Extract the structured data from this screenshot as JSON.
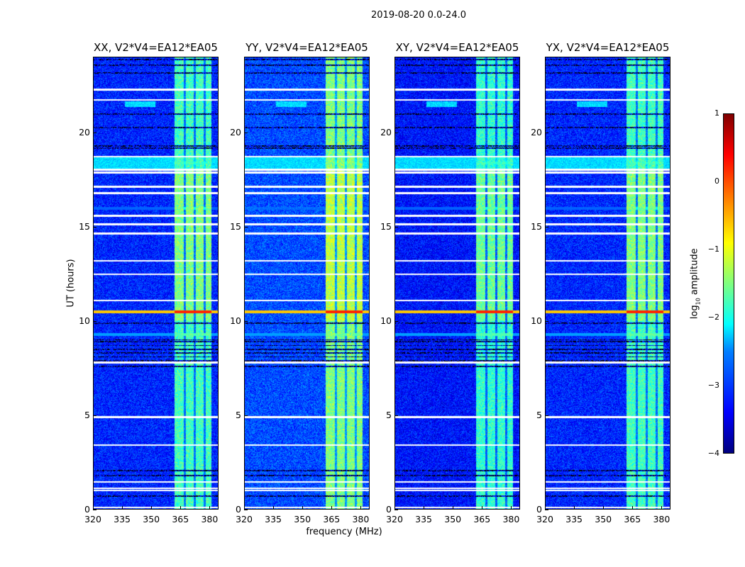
{
  "chart_data": {
    "type": "heatmap",
    "suptitle": "2019-08-20 0.0-24.0",
    "xlabel": "frequency (MHz)",
    "ylabel": "UT (hours)",
    "xlim": [
      320,
      384.6
    ],
    "ylim": [
      0,
      24
    ],
    "xticks": [
      "320",
      "335",
      "350",
      "365",
      "380"
    ],
    "xtick_values": [
      320,
      335,
      350,
      365,
      380
    ],
    "yticks": [
      "0",
      "5",
      "10",
      "15",
      "20"
    ],
    "ytick_values": [
      0,
      5,
      10,
      15,
      20
    ],
    "panels": [
      {
        "title": "XX, V2*V4=EA12*EA05",
        "band_level": -1.5,
        "background_level": -3.2
      },
      {
        "title": "YY, V2*V4=EA12*EA05",
        "band_level": -1.2,
        "background_level": -3.0
      },
      {
        "title": "XY, V2*V4=EA12*EA05",
        "band_level": -1.6,
        "background_level": -3.3
      },
      {
        "title": "YX, V2*V4=EA12*EA05",
        "band_level": -1.5,
        "background_level": -3.2
      }
    ],
    "bright_band_mhz": [
      362,
      381
    ],
    "band_gaps_mhz": [
      367.3,
      372.4,
      377.5
    ],
    "flagged_rows_hours": [
      0.1,
      1.0,
      1.1,
      1.45,
      3.4,
      4.9,
      7.8,
      11.1,
      12.5,
      13.2,
      14.65,
      15.15,
      15.6,
      16.8,
      17.15,
      17.9,
      18.05,
      18.75,
      21.75,
      22.3
    ],
    "masked_rows_hours": [
      0.7,
      1.8,
      2.05,
      7.6,
      7.9,
      8.1,
      8.3,
      8.5,
      8.7,
      8.9,
      9.0,
      9.9,
      19.2,
      19.3,
      20.3,
      21.0,
      23.2,
      23.6,
      23.9
    ],
    "rfi_rows_hours": [
      {
        "hour": 10.5,
        "level": 0.2
      },
      {
        "hour": 9.3,
        "level": -1.8
      },
      {
        "hour": 18.4,
        "level": -2.0
      },
      {
        "hour": 16.0,
        "level": -2.1
      }
    ],
    "colorbar": {
      "label": "log10 amplitude",
      "label_main": "log",
      "label_sub": "10",
      "label_rest": " amplitude",
      "colormap": "jet",
      "range": [
        -4,
        1
      ],
      "ticks": [
        "1",
        "0",
        "−1",
        "−2",
        "−3",
        "−4"
      ],
      "tick_values": [
        1,
        0,
        -1,
        -2,
        -3,
        -4
      ]
    }
  }
}
